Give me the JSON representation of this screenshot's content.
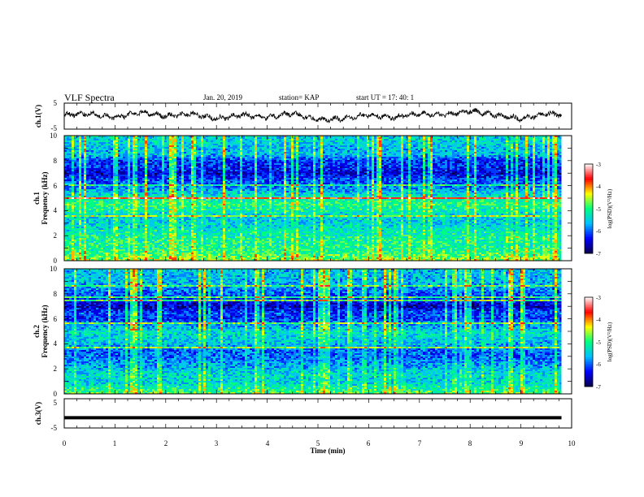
{
  "header": {
    "title": "VLF Spectra",
    "date": "Jan. 20, 2019",
    "station": "station= KAP",
    "start": "start UT =  17: 40: 1"
  },
  "chart_data": [
    {
      "type": "line",
      "panel": "ch1-waveform",
      "ylabel": "ch.1(V)",
      "ylim": [
        -5,
        5
      ],
      "yticks": [
        "5",
        "-5"
      ],
      "xlim": [
        0,
        10
      ],
      "series": [
        {
          "x": [
            0,
            0.5,
            1,
            1.5,
            2,
            2.5,
            3,
            3.5,
            4,
            4.5,
            5,
            5.5,
            6,
            6.5,
            7,
            7.5,
            8,
            8.5,
            9,
            9.5,
            9.8
          ],
          "values": [
            0.5,
            1.0,
            -0.5,
            1.5,
            0,
            1.0,
            -1.0,
            0.5,
            -0.5,
            1.0,
            -1.5,
            -1.0,
            0.5,
            -0.5,
            1.0,
            0.5,
            2.0,
            0.5,
            -1.0,
            1.0,
            0.5
          ]
        }
      ]
    },
    {
      "type": "heatmap",
      "panel": "ch1-spectrogram",
      "ylabel_lines": [
        "ch.1",
        "Frequency (kHz)"
      ],
      "ylim": [
        0,
        10
      ],
      "yticks": [
        "0",
        "2",
        "4",
        "6",
        "8",
        "10"
      ],
      "xlim": [
        0,
        10
      ],
      "data_xmax": 9.8,
      "profile_freq_khz": [
        0,
        0.5,
        1,
        1.5,
        2,
        2.5,
        3,
        3.5,
        4,
        4.5,
        5,
        5.5,
        6,
        6.5,
        7,
        7.5,
        8,
        8.5,
        9,
        9.5,
        10
      ],
      "profile_log_psd": [
        -4.6,
        -4.9,
        -5.1,
        -5.1,
        -5.2,
        -5.3,
        -5.5,
        -5.5,
        -5.2,
        -5.0,
        -5.2,
        -5.6,
        -6.0,
        -6.1,
        -6.5,
        -6.2,
        -6.2,
        -5.6,
        -5.6,
        -5.5,
        -5.5
      ],
      "colorbar": {
        "label": "log(PSD)(V²/Hz)",
        "range": [
          -7,
          -3
        ],
        "ticks": [
          "-3",
          "-4",
          "-5",
          "-6",
          "-7"
        ]
      }
    },
    {
      "type": "heatmap",
      "panel": "ch2-spectrogram",
      "ylabel_lines": [
        "ch.2",
        "Frequency (kHz)"
      ],
      "ylim": [
        0,
        10
      ],
      "yticks": [
        "0",
        "2",
        "4",
        "6",
        "8",
        "10"
      ],
      "xlim": [
        0,
        10
      ],
      "data_xmax": 9.8,
      "profile_freq_khz": [
        0,
        0.5,
        1,
        1.5,
        2,
        2.5,
        3,
        3.5,
        4,
        4.5,
        5,
        5.5,
        6,
        6.5,
        7,
        7.5,
        8,
        8.5,
        9,
        9.5,
        10
      ],
      "profile_log_psd": [
        -4.8,
        -5.2,
        -5.5,
        -5.4,
        -5.6,
        -5.8,
        -6.0,
        -6.0,
        -5.6,
        -5.5,
        -5.4,
        -5.8,
        -6.2,
        -6.1,
        -6.6,
        -6.3,
        -6.0,
        -5.8,
        -5.6,
        -5.6,
        -5.6
      ],
      "colorbar": {
        "label": "log(PSD)(V²/Hz)",
        "range": [
          -7,
          -3
        ],
        "ticks": [
          "-3",
          "-4",
          "-5",
          "-6",
          "-7"
        ]
      }
    },
    {
      "type": "line",
      "panel": "ch3-waveform",
      "ylabel": "ch.3(V)",
      "ylim": [
        -5,
        5
      ],
      "yticks": [
        "5",
        "-5"
      ],
      "xlim": [
        0,
        10
      ],
      "series": [
        {
          "x": [
            0,
            9.8
          ],
          "values": [
            -1.5,
            -1.5
          ]
        }
      ]
    }
  ],
  "xaxis": {
    "label": "Time (min)",
    "ticks": [
      "0",
      "1",
      "2",
      "3",
      "4",
      "5",
      "6",
      "7",
      "8",
      "9",
      "10"
    ]
  },
  "colors": {
    "background": "#ffffff",
    "ink": "#000000",
    "colormap": [
      "#08004a",
      "#0000ff",
      "#00bfff",
      "#00ff80",
      "#ffff00",
      "#ff0000",
      "#ffffff"
    ]
  }
}
